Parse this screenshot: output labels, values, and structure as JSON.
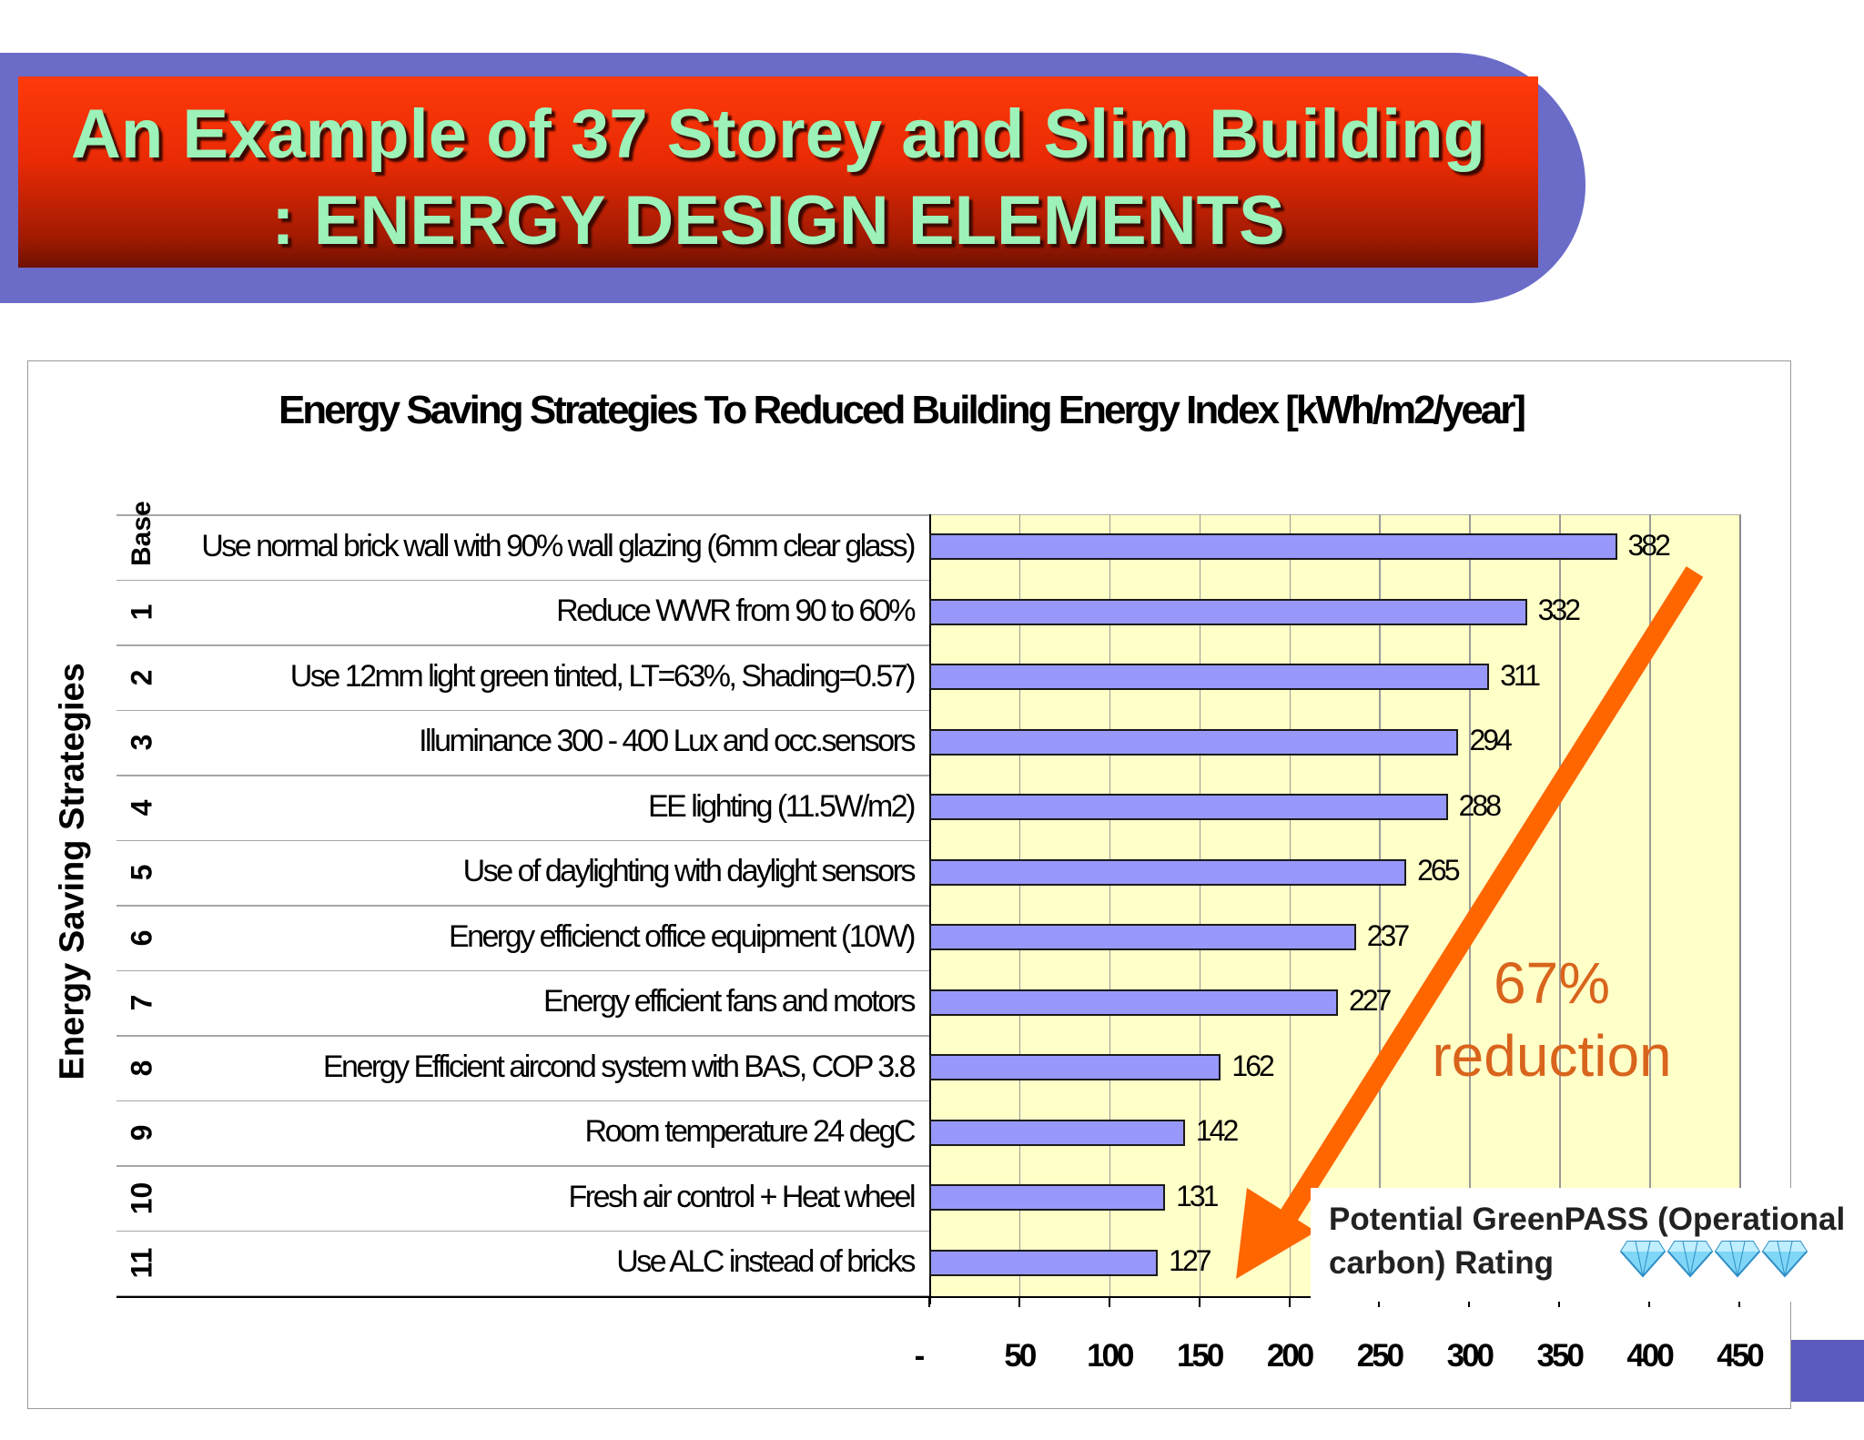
{
  "slide": {
    "title_line1": "An Example of 37 Storey and Slim Building",
    "title_line2": ": ENERGY DESIGN ELEMENTS"
  },
  "annotation": {
    "reduction_pct": "67%",
    "reduction_word": "reduction",
    "rating_line1": "Potential GreenPASS (Operational",
    "rating_line2": "carbon) Rating",
    "rating_icon": "diamond-icon",
    "rating_count": 4,
    "arrow_color": "#ff6600"
  },
  "chart_data": {
    "type": "bar",
    "orientation": "horizontal",
    "title": "Energy Saving Strategies To Reduced Building Energy Index   [kWh/m2/year]",
    "ylabel": "Energy Saving Strategies",
    "xlabel": "",
    "xlim": [
      0,
      450
    ],
    "x_ticks": [
      "-",
      "50",
      "100",
      "150",
      "200",
      "250",
      "300",
      "350",
      "400",
      "450"
    ],
    "grid": true,
    "bar_color": "#9898fb",
    "plot_background": "#ffffc8",
    "categories": [
      {
        "num": "Base",
        "label": "Use normal brick wall with 90% wall glazing (6mm clear glass)",
        "value": 382
      },
      {
        "num": "1",
        "label": "Reduce WWR from 90 to 60%",
        "value": 332
      },
      {
        "num": "2",
        "label": "Use 12mm light green tinted, LT=63%, Shading=0.57)",
        "value": 311
      },
      {
        "num": "3",
        "label": "Illuminance 300 - 400 Lux and occ.sensors",
        "value": 294
      },
      {
        "num": "4",
        "label": "EE lighting (11.5W/m2)",
        "value": 288
      },
      {
        "num": "5",
        "label": "Use of daylighting with daylight sensors",
        "value": 265
      },
      {
        "num": "6",
        "label": "Energy efficienct office equipment (10W)",
        "value": 237
      },
      {
        "num": "7",
        "label": "Energy efficient fans and motors",
        "value": 227
      },
      {
        "num": "8",
        "label": "Energy Efficient aircond system with BAS, COP 3.8",
        "value": 162
      },
      {
        "num": "9",
        "label": "Room temperature 24 degC",
        "value": 142
      },
      {
        "num": "10",
        "label": "Fresh air control + Heat wheel",
        "value": 131
      },
      {
        "num": "11",
        "label": "Use ALC instead of bricks",
        "value": 127
      }
    ]
  }
}
